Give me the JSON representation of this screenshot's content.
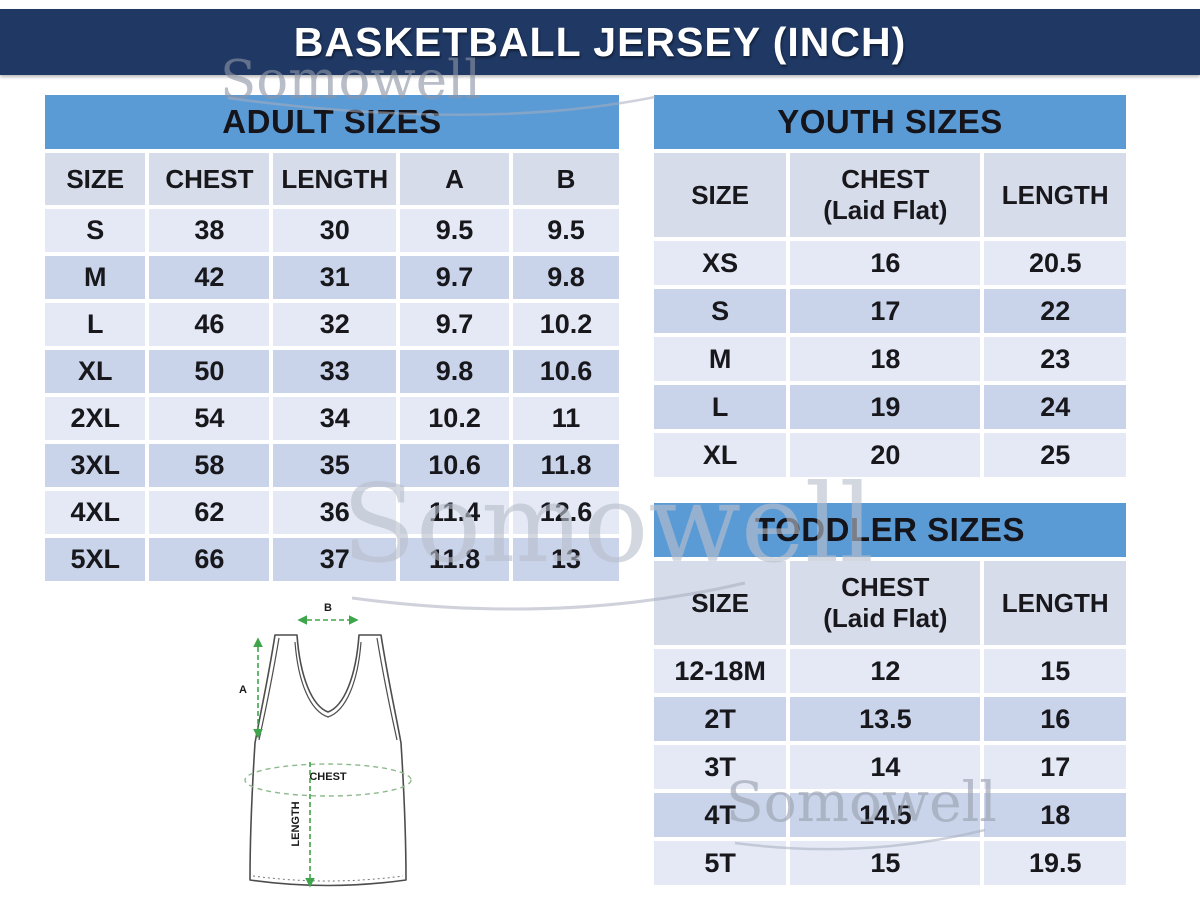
{
  "title": "BASKETBALL JERSEY (INCH)",
  "watermark": {
    "text": "Somowell"
  },
  "colors": {
    "title_navy": "#1F3864",
    "section_blue": "#5B9BD5",
    "column_header_bg": "#D6DCE9",
    "row_light": "#E4E9F5",
    "row_dark": "#C9D4EA",
    "measure_green": "#3FA54A"
  },
  "tables": {
    "adult": {
      "title": "ADULT SIZES",
      "columns": [
        "SIZE",
        "CHEST",
        "LENGTH",
        "A",
        "B"
      ],
      "rows": [
        [
          "S",
          "38",
          "30",
          "9.5",
          "9.5"
        ],
        [
          "M",
          "42",
          "31",
          "9.7",
          "9.8"
        ],
        [
          "L",
          "46",
          "32",
          "9.7",
          "10.2"
        ],
        [
          "XL",
          "50",
          "33",
          "9.8",
          "10.6"
        ],
        [
          "2XL",
          "54",
          "34",
          "10.2",
          "11"
        ],
        [
          "3XL",
          "58",
          "35",
          "10.6",
          "11.8"
        ],
        [
          "4XL",
          "62",
          "36",
          "11.4",
          "12.6"
        ],
        [
          "5XL",
          "66",
          "37",
          "11.8",
          "13"
        ]
      ]
    },
    "youth": {
      "title": "YOUTH SIZES",
      "columns": [
        {
          "label": "SIZE"
        },
        {
          "label": "CHEST",
          "sub": "(Laid Flat)"
        },
        {
          "label": "LENGTH"
        }
      ],
      "rows": [
        [
          "XS",
          "16",
          "20.5"
        ],
        [
          "S",
          "17",
          "22"
        ],
        [
          "M",
          "18",
          "23"
        ],
        [
          "L",
          "19",
          "24"
        ],
        [
          "XL",
          "20",
          "25"
        ]
      ]
    },
    "toddler": {
      "title": "TODDLER SIZES",
      "columns": [
        {
          "label": "SIZE"
        },
        {
          "label": "CHEST",
          "sub": "(Laid Flat)"
        },
        {
          "label": "LENGTH"
        }
      ],
      "rows": [
        [
          "12-18M",
          "12",
          "15"
        ],
        [
          "2T",
          "13.5",
          "16"
        ],
        [
          "3T",
          "14",
          "17"
        ],
        [
          "4T",
          "14.5",
          "18"
        ],
        [
          "5T",
          "15",
          "19.5"
        ]
      ]
    }
  },
  "diagram": {
    "a_label": "A",
    "b_label": "B",
    "chest_label": "CHEST",
    "length_label": "LENGTH"
  }
}
